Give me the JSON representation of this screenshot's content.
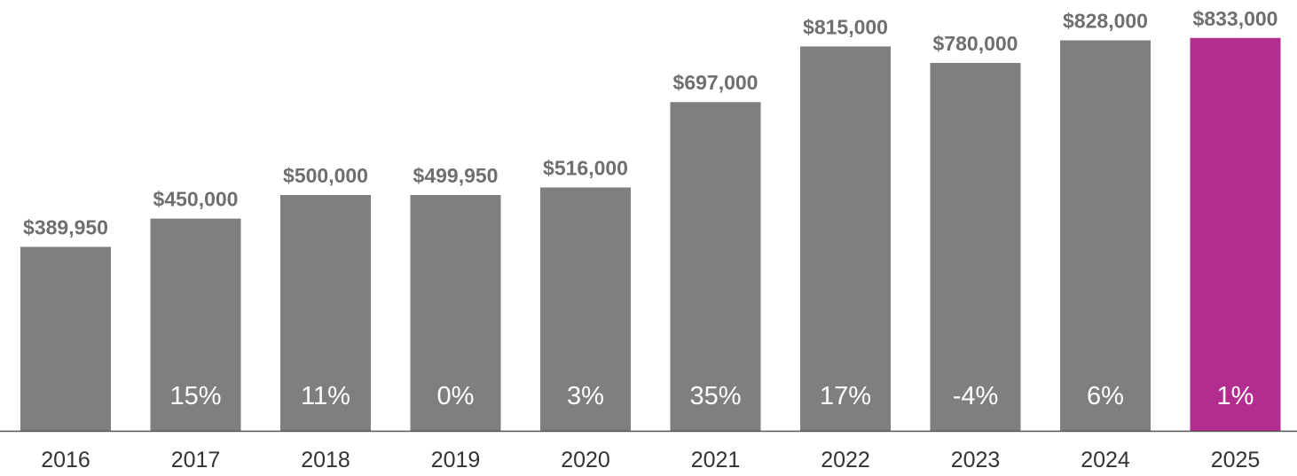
{
  "chart_data": {
    "type": "bar",
    "categories": [
      "2016",
      "2017",
      "2018",
      "2019",
      "2020",
      "2021",
      "2022",
      "2023",
      "2024",
      "2025"
    ],
    "values": [
      389950,
      450000,
      500000,
      499950,
      516000,
      697000,
      815000,
      780000,
      828000,
      833000
    ],
    "value_labels": [
      "$389,950",
      "$450,000",
      "$500,000",
      "$499,950",
      "$516,000",
      "$697,000",
      "$815,000",
      "$780,000",
      "$828,000",
      "$833,000"
    ],
    "change_labels": [
      "",
      "15%",
      "11%",
      "0%",
      "3%",
      "35%",
      "17%",
      "-4%",
      "6%",
      "1%"
    ],
    "title": "",
    "xlabel": "",
    "ylabel": "",
    "ylim": [
      0,
      850000
    ],
    "grid": false,
    "legend": "none",
    "colors": {
      "bar": "#7f7f7f",
      "highlight": "#b22d8f",
      "highlight_category": "2025",
      "axis": "#555555"
    }
  }
}
